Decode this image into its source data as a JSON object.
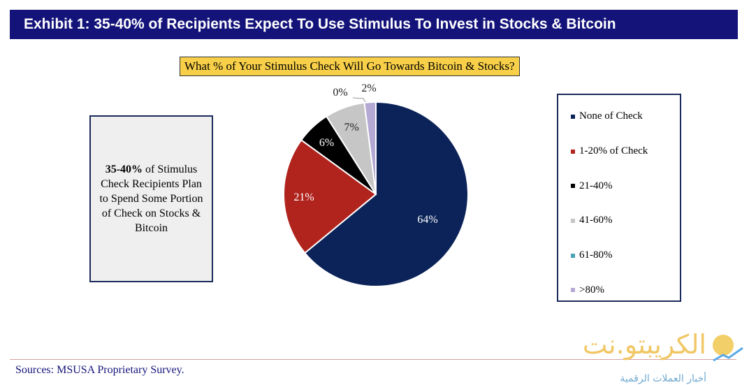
{
  "title": "Exhibit 1: 35-40% of Recipients Expect To Use Stimulus To Invest in Stocks & Bitcoin",
  "question": "What % of Your Stimulus Check Will Go Towards Bitcoin & Stocks?",
  "callout": {
    "bold": "35-40%",
    "text": " of Stimulus Check Recipients Plan to Spend Some Portion of Check on Stocks & Bitcoin"
  },
  "source": "Sources: MSUSA Proprietary Survey.",
  "watermark": {
    "name": "الكريبتو.نت",
    "tagline": "أخبار العملات الرقمية"
  },
  "chart_data": {
    "type": "pie",
    "title": "What % of Your Stimulus Check Will Go Towards Bitcoin & Stocks?",
    "legend_position": "right",
    "slices": [
      {
        "label": "None of Check",
        "value": 64,
        "display": "64%",
        "color": "#0b2358"
      },
      {
        "label": "1-20% of Check",
        "value": 21,
        "display": "21%",
        "color": "#b0241d"
      },
      {
        "label": "21-40%",
        "value": 6,
        "display": "6%",
        "color": "#000000"
      },
      {
        "label": "41-60%",
        "value": 7,
        "display": "7%",
        "color": "#c6c6c6"
      },
      {
        "label": "61-80%",
        "value": 0,
        "display": "0%",
        "color": "#4aa3b0"
      },
      {
        "label": ">80%",
        "value": 2,
        "display": "2%",
        "color": "#b4a9d2"
      }
    ]
  }
}
